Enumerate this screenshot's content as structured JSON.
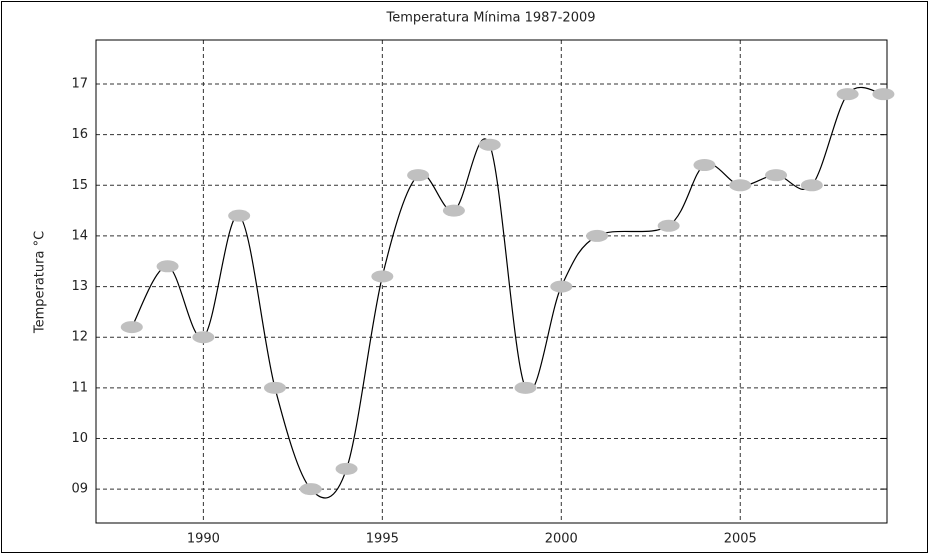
{
  "chart_data": {
    "type": "line",
    "title": "Temperatura Mínima 1987-2009",
    "y_label": "Temperatura °C",
    "x": [
      1988,
      1989,
      1990,
      1991,
      1992,
      1993,
      1994,
      1995,
      1996,
      1997,
      1998,
      1999,
      2000,
      2001,
      2003,
      2004,
      2005,
      2006,
      2007,
      2008,
      2009
    ],
    "series": [
      {
        "name": "Temperatura Mínima",
        "color": "#000000",
        "marker_color": "#c0c0c0",
        "values": [
          12.2,
          13.4,
          12.0,
          14.4,
          11.0,
          9.0,
          9.4,
          13.2,
          15.2,
          14.5,
          15.8,
          11.0,
          13.0,
          14.0,
          14.2,
          15.4,
          15.0,
          15.2,
          15.0,
          16.8,
          16.8
        ]
      }
    ],
    "xlim": [
      1987,
      2009.1
    ],
    "ylim": [
      8.33,
      17.87
    ],
    "xticks": [
      1990,
      1995,
      2000,
      2005
    ],
    "yticks": [
      {
        "value": 9,
        "label": "09"
      },
      10,
      11,
      12,
      13,
      14,
      15,
      16,
      17
    ],
    "grid": true
  }
}
